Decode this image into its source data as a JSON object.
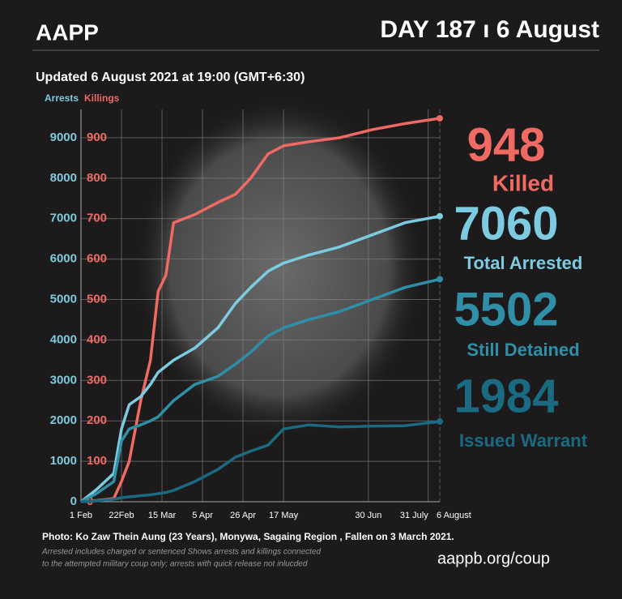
{
  "header": {
    "brand": "AAPP",
    "day": "DAY 187 ı 6 August",
    "updated": "Updated 6 August 2021 at 19:00 (GMT+6:30)"
  },
  "footer": {
    "photo": "Photo:  Ko Zaw Thein Aung (23 Years), Monywa, Sagaing Region , Fallen on 3 March 2021.",
    "note": [
      "Arrested includes charged or sentenced Shows arrests and killings connected",
      "to the attempted military coup only; arrests with quick release not inlucded"
    ],
    "url": "aappb.org/coup"
  },
  "chart_data": {
    "type": "line",
    "ylabel": "Arrests",
    "y2label": "Killings",
    "x": [
      0,
      8,
      17,
      21,
      25,
      31,
      36,
      40,
      44,
      48,
      59,
      71,
      80,
      88,
      97,
      105,
      118,
      134,
      151,
      168,
      186
    ],
    "xlim": [
      0,
      186
    ],
    "xticks": [
      {
        "value": 0,
        "label": "1 Feb"
      },
      {
        "value": 21,
        "label": "22Feb"
      },
      {
        "value": 42,
        "label": "15 Mar"
      },
      {
        "value": 63,
        "label": "5 Apr"
      },
      {
        "value": 84,
        "label": "26 Apr"
      },
      {
        "value": 105,
        "label": "17 May"
      },
      {
        "value": 149,
        "label": "30 Jun"
      },
      {
        "value": 180,
        "label": "31 July"
      },
      {
        "value": 186,
        "label": "6 August"
      }
    ],
    "ylim": [
      0,
      9700
    ],
    "yticks": [
      0,
      1000,
      2000,
      3000,
      4000,
      5000,
      6000,
      7000,
      8000,
      9000
    ],
    "y2lim": [
      0,
      970
    ],
    "y2ticks": [
      0,
      100,
      200,
      300,
      400,
      500,
      600,
      700,
      800,
      900
    ],
    "grid": true,
    "series": [
      {
        "name": "Killed",
        "color": "#ef6a63",
        "axis": "y2",
        "values": [
          0,
          3,
          8,
          50,
          100,
          250,
          350,
          520,
          560,
          690,
          710,
          740,
          760,
          800,
          860,
          880,
          890,
          900,
          920,
          935,
          948
        ]
      },
      {
        "name": "Total Arrested",
        "color": "#7ccbe0",
        "values": [
          0,
          300,
          700,
          1800,
          2400,
          2600,
          2900,
          3200,
          3350,
          3500,
          3800,
          4300,
          4900,
          5300,
          5700,
          5900,
          6100,
          6300,
          6600,
          6900,
          7060
        ]
      },
      {
        "name": "Still Detained",
        "color": "#2e8fa6",
        "values": [
          0,
          200,
          500,
          1500,
          1800,
          1900,
          2000,
          2100,
          2300,
          2500,
          2900,
          3100,
          3400,
          3700,
          4100,
          4300,
          4500,
          4700,
          5000,
          5300,
          5502
        ]
      },
      {
        "name": "Issued Warrant",
        "color": "#1a6b82",
        "values": [
          0,
          20,
          60,
          100,
          120,
          150,
          170,
          200,
          230,
          280,
          500,
          800,
          1100,
          1250,
          1400,
          1800,
          1900,
          1850,
          1870,
          1880,
          1984
        ]
      }
    ]
  }
}
